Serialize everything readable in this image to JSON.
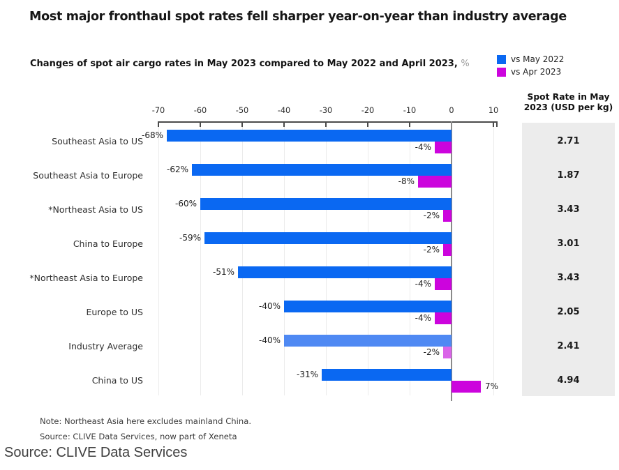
{
  "title": "Most major fronthaul spot rates fell sharper year-on-year than industry average",
  "subtitle": {
    "bold": "Changes of spot air cargo rates in May 2023 compared to May 2022 and April 2023,",
    "suffix": "%"
  },
  "legend": [
    {
      "label": "vs May 2022",
      "color": "#0a68f2"
    },
    {
      "label": "vs Apr 2023",
      "color": "#cc04dd"
    }
  ],
  "axis": {
    "ticks": [
      -70,
      -60,
      -50,
      -40,
      -30,
      -20,
      -10,
      0,
      10
    ]
  },
  "right_panel": {
    "header_line1": "Spot Rate in May",
    "header_line2": "2023 (USD per kg)"
  },
  "chart_data": {
    "type": "bar",
    "orientation": "horizontal",
    "title": "Changes of spot air cargo rates in May 2023 compared to May 2022 and April 2023, %",
    "xlim": [
      -70,
      10
    ],
    "grid": true,
    "categories": [
      "Southeast Asia to US",
      "Southeast Asia to Europe",
      "*Northeast Asia to US",
      "China to Europe",
      "*Northeast Asia to Europe",
      "Europe to US",
      "Industry Average",
      "China to US"
    ],
    "series": [
      {
        "name": "vs May 2022",
        "values": [
          -68,
          -62,
          -60,
          -59,
          -51,
          -40,
          -40,
          -31
        ],
        "value_labels": [
          "-68%",
          "-62%",
          "-60%",
          "-59%",
          "-51%",
          "-40%",
          "-40%",
          "-31%"
        ],
        "color": "#0a68f2",
        "muted_color": "#4f89f3"
      },
      {
        "name": "vs Apr 2023",
        "values": [
          -4,
          -8,
          -2,
          -2,
          -4,
          -4,
          -2,
          7
        ],
        "value_labels": [
          "-4%",
          "-8%",
          "-2%",
          "-2%",
          "-4%",
          "-4%",
          "-2%",
          "7%"
        ],
        "color": "#cc04dd",
        "muted_color": "#da64e8"
      }
    ],
    "muted_row": "Industry Average",
    "spot_rates": [
      "2.71",
      "1.87",
      "3.43",
      "3.01",
      "3.43",
      "2.05",
      "2.41",
      "4.94"
    ],
    "spot_rate_header": "Spot Rate in May 2023 (USD per kg)"
  },
  "notes": {
    "note": "Note: Northeast Asia here excludes mainland China.",
    "source": "Source: CLIVE Data Services, now part of Xeneta"
  },
  "caption": "Source: CLIVE Data Services"
}
